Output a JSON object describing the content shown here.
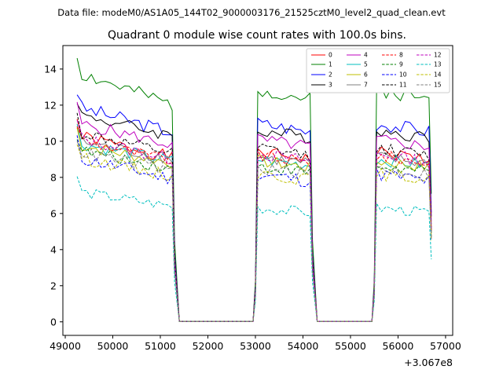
{
  "chart_data": {
    "type": "line",
    "suptitle": "Data file: modeM0/AS1A05_144T02_9000003176_21525cztM0_level2_quad_clean.evt",
    "title": "Quadrant 0 module wise count rates with 100.0s bins.",
    "xlabel": "",
    "ylabel": "",
    "x_offset_label": "+3.067e8",
    "xlim": [
      48950,
      57150
    ],
    "ylim": [
      -0.75,
      15.3
    ],
    "x_ticks": [
      49000,
      50000,
      51000,
      52000,
      53000,
      54000,
      55000,
      56000,
      57000
    ],
    "x_tick_labels": [
      "49000",
      "50000",
      "51000",
      "52000",
      "53000",
      "54000",
      "55000",
      "56000",
      "57000"
    ],
    "y_ticks": [
      0,
      2,
      4,
      6,
      8,
      10,
      12,
      14
    ],
    "y_tick_labels": [
      "0",
      "2",
      "4",
      "6",
      "8",
      "10",
      "12",
      "14"
    ],
    "grid": false,
    "legend_position": "upper-right",
    "segments": [
      {
        "start": 49250,
        "step": 100,
        "count": 21
      },
      {
        "start": 53050,
        "step": 100,
        "count": 12
      },
      {
        "start": 55550,
        "step": 100,
        "count": 12
      }
    ],
    "gap_level": 0.02,
    "series": [
      {
        "name": "0",
        "color": "#ff0000",
        "dash": "solid",
        "level": 9.4,
        "slope": -0.06,
        "amp": 0.35,
        "seed": 1
      },
      {
        "name": "1",
        "color": "#008000",
        "dash": "solid",
        "level": 12.9,
        "slope": -0.09,
        "amp": 0.4,
        "seed": 2
      },
      {
        "name": "2",
        "color": "#0000ff",
        "dash": "solid",
        "level": 11.0,
        "slope": -0.07,
        "amp": 0.4,
        "seed": 3
      },
      {
        "name": "3",
        "color": "#000000",
        "dash": "solid",
        "level": 10.6,
        "slope": -0.06,
        "amp": 0.35,
        "seed": 4
      },
      {
        "name": "4",
        "color": "#bf00bf",
        "dash": "solid",
        "level": 10.1,
        "slope": -0.06,
        "amp": 0.35,
        "seed": 5
      },
      {
        "name": "5",
        "color": "#00bfbf",
        "dash": "solid",
        "level": 9.0,
        "slope": -0.05,
        "amp": 0.35,
        "seed": 6
      },
      {
        "name": "6",
        "color": "#bfbf00",
        "dash": "solid",
        "level": 8.9,
        "slope": -0.05,
        "amp": 0.35,
        "seed": 7
      },
      {
        "name": "7",
        "color": "#808080",
        "dash": "solid",
        "level": 9.1,
        "slope": -0.05,
        "amp": 0.35,
        "seed": 8
      },
      {
        "name": "8",
        "color": "#ff0000",
        "dash": "dashed",
        "level": 9.2,
        "slope": -0.06,
        "amp": 0.35,
        "seed": 9
      },
      {
        "name": "9",
        "color": "#008000",
        "dash": "dashed",
        "level": 8.6,
        "slope": -0.05,
        "amp": 0.35,
        "seed": 10
      },
      {
        "name": "10",
        "color": "#0000ff",
        "dash": "dashed",
        "level": 8.2,
        "slope": -0.06,
        "amp": 0.4,
        "seed": 11
      },
      {
        "name": "11",
        "color": "#000000",
        "dash": "dashed",
        "level": 9.6,
        "slope": -0.06,
        "amp": 0.35,
        "seed": 12
      },
      {
        "name": "12",
        "color": "#bf00bf",
        "dash": "dashed",
        "level": 9.3,
        "slope": -0.06,
        "amp": 0.35,
        "seed": 13
      },
      {
        "name": "13",
        "color": "#00bfbf",
        "dash": "dashed",
        "level": 6.3,
        "slope": -0.04,
        "amp": 0.3,
        "seed": 14
      },
      {
        "name": "14",
        "color": "#bfbf00",
        "dash": "dashed",
        "level": 8.2,
        "slope": -0.05,
        "amp": 0.35,
        "seed": 15
      },
      {
        "name": "15",
        "color": "#808080",
        "dash": "dashed",
        "level": 8.5,
        "slope": -0.05,
        "amp": 0.35,
        "seed": 16
      }
    ]
  }
}
